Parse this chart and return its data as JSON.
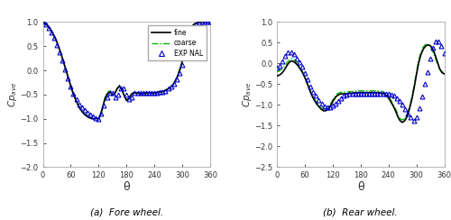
{
  "fore_fine_x": [
    0,
    5,
    10,
    15,
    20,
    25,
    30,
    35,
    40,
    45,
    50,
    55,
    60,
    65,
    70,
    75,
    80,
    85,
    90,
    95,
    100,
    105,
    110,
    115,
    120,
    125,
    130,
    135,
    140,
    145,
    150,
    155,
    160,
    165,
    170,
    175,
    180,
    185,
    190,
    195,
    200,
    205,
    210,
    215,
    220,
    225,
    230,
    235,
    240,
    245,
    250,
    255,
    260,
    265,
    270,
    275,
    280,
    285,
    290,
    295,
    300,
    305,
    310,
    315,
    320,
    325,
    330,
    335,
    340,
    345,
    350,
    355,
    360
  ],
  "fore_fine_y": [
    1.0,
    0.97,
    0.93,
    0.87,
    0.79,
    0.7,
    0.59,
    0.46,
    0.32,
    0.16,
    0.0,
    -0.16,
    -0.32,
    -0.47,
    -0.59,
    -0.7,
    -0.79,
    -0.86,
    -0.91,
    -0.95,
    -0.98,
    -0.99,
    -1.0,
    -0.99,
    -1.0,
    -0.9,
    -0.72,
    -0.55,
    -0.47,
    -0.45,
    -0.5,
    -0.48,
    -0.38,
    -0.32,
    -0.4,
    -0.52,
    -0.62,
    -0.58,
    -0.5,
    -0.46,
    -0.46,
    -0.47,
    -0.48,
    -0.48,
    -0.47,
    -0.47,
    -0.46,
    -0.47,
    -0.47,
    -0.46,
    -0.45,
    -0.44,
    -0.43,
    -0.41,
    -0.38,
    -0.35,
    -0.3,
    -0.22,
    -0.12,
    0.01,
    0.18,
    0.4,
    0.62,
    0.78,
    0.89,
    0.95,
    0.98,
    0.99,
    1.0,
    1.0,
    1.0,
    1.0,
    1.0
  ],
  "fore_coarse_x": [
    0,
    5,
    10,
    15,
    20,
    25,
    30,
    35,
    40,
    45,
    50,
    55,
    60,
    65,
    70,
    75,
    80,
    85,
    90,
    95,
    100,
    105,
    110,
    115,
    120,
    125,
    130,
    135,
    140,
    145,
    150,
    155,
    160,
    165,
    170,
    175,
    180,
    185,
    190,
    195,
    200,
    205,
    210,
    215,
    220,
    225,
    230,
    235,
    240,
    245,
    250,
    255,
    260,
    265,
    270,
    275,
    280,
    285,
    290,
    295,
    300,
    305,
    310,
    315,
    320,
    325,
    330,
    335,
    340,
    345,
    350,
    355,
    360
  ],
  "fore_coarse_y": [
    1.0,
    0.97,
    0.93,
    0.87,
    0.79,
    0.7,
    0.59,
    0.46,
    0.32,
    0.16,
    0.0,
    -0.16,
    -0.32,
    -0.47,
    -0.59,
    -0.7,
    -0.79,
    -0.86,
    -0.91,
    -0.95,
    -0.98,
    -0.99,
    -1.0,
    -0.99,
    -1.0,
    -0.88,
    -0.7,
    -0.52,
    -0.44,
    -0.42,
    -0.5,
    -0.48,
    -0.37,
    -0.3,
    -0.37,
    -0.5,
    -0.62,
    -0.58,
    -0.5,
    -0.47,
    -0.47,
    -0.47,
    -0.48,
    -0.47,
    -0.46,
    -0.46,
    -0.46,
    -0.46,
    -0.46,
    -0.45,
    -0.44,
    -0.43,
    -0.42,
    -0.4,
    -0.37,
    -0.34,
    -0.29,
    -0.21,
    -0.1,
    0.04,
    0.21,
    0.42,
    0.63,
    0.79,
    0.9,
    0.96,
    0.98,
    0.99,
    1.0,
    1.0,
    1.0,
    1.0,
    1.0
  ],
  "fore_exp_x": [
    0,
    6,
    12,
    18,
    24,
    30,
    36,
    42,
    48,
    54,
    60,
    66,
    72,
    78,
    84,
    90,
    96,
    102,
    108,
    114,
    120,
    126,
    132,
    138,
    144,
    150,
    156,
    162,
    168,
    174,
    180,
    186,
    192,
    198,
    204,
    210,
    216,
    222,
    228,
    234,
    240,
    246,
    252,
    258,
    264,
    270,
    276,
    282,
    288,
    294,
    300,
    306,
    312,
    318,
    324,
    330,
    336,
    342,
    348,
    354,
    360
  ],
  "fore_exp_y": [
    1.0,
    0.95,
    0.88,
    0.78,
    0.67,
    0.53,
    0.37,
    0.2,
    0.02,
    -0.16,
    -0.33,
    -0.48,
    -0.6,
    -0.7,
    -0.77,
    -0.82,
    -0.88,
    -0.92,
    -0.95,
    -0.98,
    -1.0,
    -0.9,
    -0.72,
    -0.55,
    -0.47,
    -0.47,
    -0.55,
    -0.5,
    -0.38,
    -0.38,
    -0.5,
    -0.6,
    -0.55,
    -0.47,
    -0.46,
    -0.47,
    -0.47,
    -0.47,
    -0.46,
    -0.46,
    -0.46,
    -0.46,
    -0.45,
    -0.44,
    -0.42,
    -0.38,
    -0.34,
    -0.28,
    -0.18,
    -0.05,
    0.12,
    0.35,
    0.58,
    0.76,
    0.88,
    0.95,
    0.98,
    1.0,
    1.0,
    1.0,
    1.0
  ],
  "rear_fine_x": [
    0,
    5,
    10,
    15,
    20,
    25,
    30,
    35,
    40,
    45,
    50,
    55,
    60,
    65,
    70,
    75,
    80,
    85,
    90,
    95,
    100,
    105,
    110,
    115,
    120,
    125,
    130,
    135,
    140,
    145,
    150,
    155,
    160,
    165,
    170,
    175,
    180,
    185,
    190,
    195,
    200,
    205,
    210,
    215,
    220,
    225,
    230,
    235,
    240,
    245,
    250,
    255,
    260,
    265,
    270,
    275,
    280,
    285,
    290,
    295,
    300,
    305,
    310,
    315,
    320,
    325,
    330,
    335,
    340,
    345,
    350,
    355,
    360
  ],
  "rear_fine_y": [
    -0.3,
    -0.28,
    -0.24,
    -0.17,
    -0.08,
    0.01,
    0.06,
    0.05,
    0.01,
    -0.05,
    -0.13,
    -0.22,
    -0.34,
    -0.48,
    -0.63,
    -0.77,
    -0.88,
    -0.97,
    -1.04,
    -1.1,
    -1.14,
    -1.14,
    -1.1,
    -1.02,
    -0.92,
    -0.83,
    -0.77,
    -0.74,
    -0.73,
    -0.73,
    -0.73,
    -0.72,
    -0.72,
    -0.71,
    -0.7,
    -0.7,
    -0.7,
    -0.7,
    -0.7,
    -0.7,
    -0.7,
    -0.7,
    -0.7,
    -0.7,
    -0.7,
    -0.71,
    -0.73,
    -0.77,
    -0.83,
    -0.92,
    -1.02,
    -1.14,
    -1.28,
    -1.38,
    -1.42,
    -1.38,
    -1.28,
    -1.1,
    -0.88,
    -0.6,
    -0.28,
    0.02,
    0.22,
    0.35,
    0.42,
    0.45,
    0.43,
    0.36,
    0.22,
    0.05,
    -0.12,
    -0.22,
    -0.25
  ],
  "rear_coarse_x": [
    0,
    5,
    10,
    15,
    20,
    25,
    30,
    35,
    40,
    45,
    50,
    55,
    60,
    65,
    70,
    75,
    80,
    85,
    90,
    95,
    100,
    105,
    110,
    115,
    120,
    125,
    130,
    135,
    140,
    145,
    150,
    155,
    160,
    165,
    170,
    175,
    180,
    185,
    190,
    195,
    200,
    205,
    210,
    215,
    220,
    225,
    230,
    235,
    240,
    245,
    250,
    255,
    260,
    265,
    270,
    275,
    280,
    285,
    290,
    295,
    300,
    305,
    310,
    315,
    320,
    325,
    330,
    335,
    340,
    345,
    350,
    355,
    360
  ],
  "rear_coarse_y": [
    -0.2,
    -0.18,
    -0.14,
    -0.08,
    -0.01,
    0.07,
    0.12,
    0.11,
    0.06,
    -0.01,
    -0.1,
    -0.2,
    -0.32,
    -0.46,
    -0.6,
    -0.74,
    -0.85,
    -0.93,
    -1.0,
    -1.06,
    -1.09,
    -1.09,
    -1.06,
    -0.98,
    -0.88,
    -0.79,
    -0.73,
    -0.7,
    -0.69,
    -0.69,
    -0.69,
    -0.68,
    -0.68,
    -0.67,
    -0.66,
    -0.66,
    -0.66,
    -0.66,
    -0.66,
    -0.66,
    -0.66,
    -0.66,
    -0.66,
    -0.66,
    -0.66,
    -0.67,
    -0.69,
    -0.73,
    -0.79,
    -0.88,
    -0.98,
    -1.09,
    -1.22,
    -1.33,
    -1.36,
    -1.33,
    -1.22,
    -1.05,
    -0.83,
    -0.55,
    -0.22,
    0.08,
    0.28,
    0.4,
    0.46,
    0.45,
    0.4,
    0.3,
    0.16,
    0.0,
    -0.14,
    -0.2,
    -0.22
  ],
  "rear_exp_x": [
    0,
    6,
    12,
    18,
    24,
    30,
    36,
    42,
    48,
    54,
    60,
    66,
    72,
    78,
    84,
    90,
    96,
    102,
    108,
    114,
    120,
    126,
    132,
    138,
    144,
    150,
    156,
    162,
    168,
    174,
    180,
    186,
    192,
    198,
    204,
    210,
    216,
    222,
    228,
    234,
    240,
    246,
    252,
    258,
    264,
    270,
    276,
    282,
    288,
    294,
    300,
    306,
    312,
    318,
    324,
    330,
    336,
    342,
    348,
    354,
    360
  ],
  "rear_exp_y": [
    -0.1,
    -0.05,
    0.05,
    0.18,
    0.28,
    0.28,
    0.22,
    0.12,
    0.03,
    -0.08,
    -0.22,
    -0.38,
    -0.55,
    -0.68,
    -0.78,
    -0.88,
    -0.97,
    -1.03,
    -1.06,
    -1.05,
    -1.02,
    -0.97,
    -0.9,
    -0.83,
    -0.78,
    -0.75,
    -0.73,
    -0.72,
    -0.72,
    -0.72,
    -0.72,
    -0.72,
    -0.72,
    -0.72,
    -0.72,
    -0.72,
    -0.72,
    -0.72,
    -0.72,
    -0.72,
    -0.73,
    -0.75,
    -0.78,
    -0.83,
    -0.9,
    -1.0,
    -1.1,
    -1.2,
    -1.3,
    -1.38,
    -1.3,
    -1.08,
    -0.8,
    -0.5,
    -0.2,
    0.12,
    0.38,
    0.52,
    0.52,
    0.42,
    0.25
  ],
  "fine_color": "#000000",
  "coarse_color": "#00bb00",
  "exp_color": "#0000cc",
  "fore_ylim": [
    -2.0,
    1.0
  ],
  "fore_yticks": [
    -2.0,
    -1.5,
    -1.0,
    -0.5,
    0.0,
    0.5,
    1.0
  ],
  "rear_ylim": [
    -2.5,
    1.0
  ],
  "rear_yticks": [
    -2.5,
    -2.0,
    -1.5,
    -1.0,
    -0.5,
    0.0,
    0.5,
    1.0
  ],
  "xlim": [
    0,
    360
  ],
  "xticks": [
    0,
    60,
    120,
    180,
    240,
    300,
    360
  ],
  "xlabel": "θ",
  "subtitle_a": "(a)  Fore wheel.",
  "subtitle_b": "(b)  Rear wheel.",
  "legend_labels": [
    "fine",
    "coarse",
    "EXP NAL"
  ],
  "background_color": "#ffffff"
}
